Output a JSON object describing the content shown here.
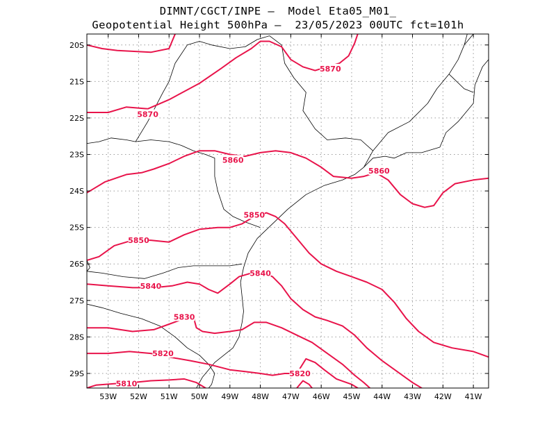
{
  "title_line1": "DIMNT/CGCT/INPE –  Model Eta05_M01_",
  "title_line2": "Geopotential Height 500hPa –  23/05/2023 00UTC fct=101h",
  "colors": {
    "contour": "#e8134a",
    "coast": "#000000",
    "grid": "#9a9a9a"
  },
  "map": {
    "lon_range": [
      -53.7,
      -40.5
    ],
    "lat_range": [
      -29.4,
      -19.7
    ],
    "lon_ticks": [
      {
        "lon": -53,
        "label": "53W"
      },
      {
        "lon": -52,
        "label": "52W"
      },
      {
        "lon": -51,
        "label": "51W"
      },
      {
        "lon": -50,
        "label": "50W"
      },
      {
        "lon": -49,
        "label": "49W"
      },
      {
        "lon": -48,
        "label": "48W"
      },
      {
        "lon": -47,
        "label": "47W"
      },
      {
        "lon": -46,
        "label": "46W"
      },
      {
        "lon": -45,
        "label": "45W"
      },
      {
        "lon": -44,
        "label": "44W"
      },
      {
        "lon": -43,
        "label": "43W"
      },
      {
        "lon": -42,
        "label": "42W"
      },
      {
        "lon": -41,
        "label": "41W"
      }
    ],
    "lat_ticks": [
      {
        "lat": -20,
        "label": "20S"
      },
      {
        "lat": -21,
        "label": "21S"
      },
      {
        "lat": -22,
        "label": "22S"
      },
      {
        "lat": -23,
        "label": "23S"
      },
      {
        "lat": -24,
        "label": "24S"
      },
      {
        "lat": -25,
        "label": "25S"
      },
      {
        "lat": -26,
        "label": "26S"
      },
      {
        "lat": -27,
        "label": "27S"
      },
      {
        "lat": -28,
        "label": "28S"
      },
      {
        "lat": -29,
        "label": "29S"
      }
    ]
  },
  "contours": [
    {
      "value": "5870",
      "points": [
        [
          -53.7,
          -20.0
        ],
        [
          -53.2,
          -20.1
        ],
        [
          -52.7,
          -20.15
        ],
        [
          -51.6,
          -20.2
        ],
        [
          -51.0,
          -20.1
        ],
        [
          -50.8,
          -19.7
        ]
      ]
    },
    {
      "value": "5870",
      "points": [
        [
          -53.7,
          -21.85
        ],
        [
          -53.0,
          -21.85
        ],
        [
          -52.4,
          -21.7
        ],
        [
          -51.7,
          -21.75
        ],
        [
          -51.0,
          -21.5
        ],
        [
          -50.0,
          -21.05
        ],
        [
          -49.3,
          -20.65
        ],
        [
          -48.8,
          -20.35
        ],
        [
          -48.3,
          -20.1
        ],
        [
          -48.0,
          -19.9
        ],
        [
          -47.7,
          -19.9
        ],
        [
          -47.3,
          -20.05
        ],
        [
          -47.0,
          -20.4
        ],
        [
          -46.6,
          -20.6
        ],
        [
          -46.2,
          -20.7
        ],
        [
          -45.8,
          -20.6
        ],
        [
          -45.4,
          -20.5
        ],
        [
          -45.1,
          -20.3
        ],
        [
          -44.9,
          -19.95
        ],
        [
          -44.8,
          -19.7
        ]
      ]
    },
    {
      "value": "5860",
      "points": [
        [
          -53.7,
          -24.05
        ],
        [
          -53.1,
          -23.75
        ],
        [
          -52.4,
          -23.55
        ],
        [
          -51.9,
          -23.5
        ],
        [
          -51.5,
          -23.4
        ],
        [
          -51.0,
          -23.25
        ],
        [
          -50.5,
          -23.05
        ],
        [
          -50.0,
          -22.9
        ],
        [
          -49.5,
          -22.9
        ],
        [
          -49.0,
          -23.0
        ],
        [
          -48.5,
          -23.05
        ],
        [
          -48.0,
          -22.95
        ],
        [
          -47.5,
          -22.9
        ],
        [
          -47.0,
          -22.95
        ],
        [
          -46.5,
          -23.1
        ],
        [
          -46.0,
          -23.35
        ],
        [
          -45.6,
          -23.6
        ],
        [
          -45.0,
          -23.65
        ],
        [
          -44.6,
          -23.6
        ],
        [
          -44.2,
          -23.5
        ],
        [
          -43.8,
          -23.7
        ],
        [
          -43.4,
          -24.1
        ],
        [
          -43.0,
          -24.35
        ],
        [
          -42.6,
          -24.45
        ],
        [
          -42.3,
          -24.4
        ],
        [
          -42.0,
          -24.05
        ],
        [
          -41.6,
          -23.8
        ],
        [
          -41.0,
          -23.7
        ],
        [
          -40.5,
          -23.65
        ]
      ]
    },
    {
      "value": "5850",
      "points": [
        [
          -53.7,
          -25.9
        ],
        [
          -53.3,
          -25.8
        ],
        [
          -52.8,
          -25.5
        ],
        [
          -52.2,
          -25.35
        ],
        [
          -51.6,
          -25.35
        ],
        [
          -51.0,
          -25.4
        ],
        [
          -50.5,
          -25.2
        ],
        [
          -50.0,
          -25.05
        ],
        [
          -49.4,
          -25.0
        ],
        [
          -49.0,
          -25.0
        ],
        [
          -48.6,
          -24.9
        ],
        [
          -48.2,
          -24.7
        ],
        [
          -47.8,
          -24.6
        ],
        [
          -47.5,
          -24.7
        ],
        [
          -47.2,
          -24.9
        ],
        [
          -46.8,
          -25.3
        ],
        [
          -46.4,
          -25.7
        ],
        [
          -46.0,
          -26.0
        ],
        [
          -45.5,
          -26.2
        ],
        [
          -45.0,
          -26.35
        ],
        [
          -44.5,
          -26.5
        ],
        [
          -44.0,
          -26.7
        ],
        [
          -43.6,
          -27.05
        ],
        [
          -43.2,
          -27.5
        ],
        [
          -42.8,
          -27.85
        ],
        [
          -42.3,
          -28.15
        ],
        [
          -41.7,
          -28.3
        ],
        [
          -41.0,
          -28.4
        ],
        [
          -40.5,
          -28.55
        ]
      ]
    },
    {
      "value": "5840",
      "points": [
        [
          -53.7,
          -26.55
        ],
        [
          -53.0,
          -26.6
        ],
        [
          -52.2,
          -26.65
        ],
        [
          -51.5,
          -26.65
        ],
        [
          -50.9,
          -26.6
        ],
        [
          -50.4,
          -26.5
        ],
        [
          -50.0,
          -26.55
        ],
        [
          -49.7,
          -26.7
        ],
        [
          -49.4,
          -26.8
        ],
        [
          -49.0,
          -26.55
        ],
        [
          -48.7,
          -26.35
        ],
        [
          -48.3,
          -26.25
        ],
        [
          -47.9,
          -26.25
        ],
        [
          -47.6,
          -26.35
        ],
        [
          -47.3,
          -26.6
        ],
        [
          -47.0,
          -26.95
        ],
        [
          -46.6,
          -27.25
        ],
        [
          -46.2,
          -27.45
        ],
        [
          -45.8,
          -27.55
        ],
        [
          -45.3,
          -27.7
        ],
        [
          -44.9,
          -27.95
        ],
        [
          -44.5,
          -28.3
        ],
        [
          -44.0,
          -28.65
        ],
        [
          -43.5,
          -28.95
        ],
        [
          -43.0,
          -29.25
        ],
        [
          -42.7,
          -29.4
        ]
      ]
    },
    {
      "value": "5830",
      "points": [
        [
          -53.7,
          -27.75
        ],
        [
          -53.0,
          -27.75
        ],
        [
          -52.2,
          -27.85
        ],
        [
          -51.5,
          -27.8
        ],
        [
          -51.0,
          -27.65
        ],
        [
          -50.5,
          -27.5
        ],
        [
          -50.2,
          -27.45
        ],
        [
          -50.1,
          -27.75
        ],
        [
          -49.9,
          -27.85
        ],
        [
          -49.5,
          -27.9
        ],
        [
          -49.0,
          -27.85
        ],
        [
          -48.6,
          -27.8
        ],
        [
          -48.2,
          -27.6
        ],
        [
          -47.8,
          -27.6
        ],
        [
          -47.3,
          -27.75
        ],
        [
          -46.8,
          -27.95
        ],
        [
          -46.3,
          -28.15
        ],
        [
          -45.8,
          -28.45
        ],
        [
          -45.3,
          -28.75
        ],
        [
          -44.9,
          -29.05
        ],
        [
          -44.6,
          -29.25
        ],
        [
          -44.4,
          -29.4
        ]
      ]
    },
    {
      "value": "5820",
      "points": [
        [
          -53.7,
          -28.45
        ],
        [
          -53.0,
          -28.45
        ],
        [
          -52.3,
          -28.4
        ],
        [
          -51.6,
          -28.45
        ],
        [
          -51.0,
          -28.55
        ],
        [
          -50.3,
          -28.65
        ],
        [
          -49.7,
          -28.75
        ],
        [
          -49.0,
          -28.9
        ],
        [
          -48.5,
          -28.95
        ],
        [
          -48.0,
          -29.0
        ],
        [
          -47.6,
          -29.05
        ],
        [
          -47.2,
          -29.0
        ],
        [
          -46.8,
          -29.0
        ],
        [
          -46.5,
          -28.6
        ],
        [
          -46.2,
          -28.7
        ],
        [
          -45.9,
          -28.9
        ],
        [
          -45.5,
          -29.15
        ],
        [
          -45.0,
          -29.3
        ],
        [
          -44.8,
          -29.4
        ]
      ]
    },
    {
      "value": "5810",
      "points": [
        [
          -53.7,
          -29.4
        ],
        [
          -53.4,
          -29.32
        ],
        [
          -52.8,
          -29.28
        ],
        [
          -52.2,
          -29.25
        ],
        [
          -51.6,
          -29.2
        ],
        [
          -51.0,
          -29.18
        ],
        [
          -50.5,
          -29.15
        ],
        [
          -50.1,
          -29.25
        ],
        [
          -49.8,
          -29.4
        ]
      ]
    },
    {
      "value": "",
      "points": [
        [
          -46.8,
          -29.4
        ],
        [
          -46.6,
          -29.2
        ],
        [
          -46.4,
          -29.3
        ],
        [
          -46.3,
          -29.4
        ]
      ]
    }
  ],
  "contour_labels": [
    {
      "text": "5870",
      "lon": -45.7,
      "lat": -20.65
    },
    {
      "text": "5870",
      "lon": -51.7,
      "lat": -21.9
    },
    {
      "text": "5860",
      "lon": -48.9,
      "lat": -23.15
    },
    {
      "text": "5860",
      "lon": -44.1,
      "lat": -23.45
    },
    {
      "text": "5850",
      "lon": -48.2,
      "lat": -24.65
    },
    {
      "text": "5850",
      "lon": -52.0,
      "lat": -25.35
    },
    {
      "text": "5840",
      "lon": -48.0,
      "lat": -26.25
    },
    {
      "text": "5840",
      "lon": -51.6,
      "lat": -26.6
    },
    {
      "text": "5830",
      "lon": -50.5,
      "lat": -27.45
    },
    {
      "text": "5820",
      "lon": -51.2,
      "lat": -28.45
    },
    {
      "text": "5820",
      "lon": -46.7,
      "lat": -29.0
    },
    {
      "text": "5810",
      "lon": -52.4,
      "lat": -29.28
    }
  ],
  "boundaries": [
    {
      "name": "coastline",
      "points": [
        [
          -50.1,
          -29.4
        ],
        [
          -49.9,
          -29.1
        ],
        [
          -49.5,
          -28.7
        ],
        [
          -48.9,
          -28.3
        ],
        [
          -48.7,
          -28.0
        ],
        [
          -48.6,
          -27.6
        ],
        [
          -48.55,
          -27.3
        ],
        [
          -48.6,
          -26.9
        ],
        [
          -48.65,
          -26.5
        ],
        [
          -48.55,
          -26.1
        ],
        [
          -48.4,
          -25.7
        ],
        [
          -48.1,
          -25.3
        ],
        [
          -47.6,
          -24.9
        ],
        [
          -47.1,
          -24.5
        ],
        [
          -46.5,
          -24.1
        ],
        [
          -45.9,
          -23.85
        ],
        [
          -45.3,
          -23.7
        ],
        [
          -44.9,
          -23.55
        ],
        [
          -44.6,
          -23.35
        ],
        [
          -44.3,
          -23.1
        ],
        [
          -43.9,
          -23.05
        ],
        [
          -43.6,
          -23.1
        ],
        [
          -43.2,
          -22.95
        ],
        [
          -42.7,
          -22.95
        ],
        [
          -42.1,
          -22.8
        ],
        [
          -41.9,
          -22.4
        ],
        [
          -41.5,
          -22.1
        ],
        [
          -41.0,
          -21.6
        ],
        [
          -40.95,
          -21.1
        ],
        [
          -40.7,
          -20.6
        ],
        [
          -40.5,
          -20.4
        ]
      ]
    },
    {
      "name": "border-ms-pr",
      "points": [
        [
          -53.7,
          -22.7
        ],
        [
          -53.3,
          -22.65
        ],
        [
          -52.9,
          -22.55
        ],
        [
          -52.4,
          -22.6
        ],
        [
          -52.1,
          -22.65
        ]
      ]
    },
    {
      "name": "border-sp-pr",
      "points": [
        [
          -52.1,
          -22.65
        ],
        [
          -51.6,
          -22.6
        ],
        [
          -51.0,
          -22.65
        ],
        [
          -50.6,
          -22.75
        ],
        [
          -50.2,
          -22.9
        ],
        [
          -49.8,
          -23.0
        ],
        [
          -49.5,
          -23.1
        ],
        [
          -49.5,
          -23.6
        ],
        [
          -49.4,
          -24.0
        ],
        [
          -49.2,
          -24.5
        ],
        [
          -48.9,
          -24.7
        ],
        [
          -48.5,
          -24.85
        ],
        [
          -48.0,
          -25.0
        ]
      ]
    },
    {
      "name": "border-ms-sp",
      "points": [
        [
          -52.1,
          -22.65
        ],
        [
          -51.7,
          -22.1
        ],
        [
          -51.2,
          -21.3
        ],
        [
          -51.0,
          -21.0
        ],
        [
          -50.8,
          -20.5
        ],
        [
          -50.4,
          -20.0
        ],
        [
          -50.0,
          -19.9
        ],
        [
          -49.6,
          -20.0
        ],
        [
          -49.0,
          -20.1
        ],
        [
          -48.5,
          -20.05
        ],
        [
          -48.1,
          -19.85
        ],
        [
          -47.7,
          -19.75
        ]
      ]
    },
    {
      "name": "border-mg-sp",
      "points": [
        [
          -47.7,
          -19.75
        ],
        [
          -47.3,
          -20.0
        ],
        [
          -47.2,
          -20.5
        ],
        [
          -46.9,
          -20.9
        ],
        [
          -46.5,
          -21.3
        ],
        [
          -46.6,
          -21.8
        ],
        [
          -46.2,
          -22.3
        ],
        [
          -45.8,
          -22.6
        ],
        [
          -45.2,
          -22.55
        ],
        [
          -44.7,
          -22.6
        ],
        [
          -44.3,
          -22.9
        ],
        [
          -44.6,
          -23.35
        ]
      ]
    },
    {
      "name": "border-mg-rj",
      "points": [
        [
          -44.3,
          -22.9
        ],
        [
          -43.8,
          -22.4
        ],
        [
          -43.1,
          -22.1
        ],
        [
          -42.5,
          -21.6
        ],
        [
          -42.2,
          -21.2
        ],
        [
          -41.8,
          -20.8
        ],
        [
          -41.5,
          -20.4
        ],
        [
          -41.3,
          -20.0
        ],
        [
          -41.2,
          -19.7
        ]
      ]
    },
    {
      "name": "border-rj-es",
      "points": [
        [
          -41.8,
          -20.8
        ],
        [
          -41.3,
          -21.2
        ],
        [
          -41.0,
          -21.3
        ]
      ]
    },
    {
      "name": "border-mg-es",
      "points": [
        [
          -41.3,
          -20.0
        ],
        [
          -41.0,
          -19.7
        ]
      ]
    },
    {
      "name": "border-pr-sc",
      "points": [
        [
          -53.7,
          -26.2
        ],
        [
          -53.2,
          -26.25
        ],
        [
          -52.5,
          -26.35
        ],
        [
          -51.8,
          -26.4
        ],
        [
          -51.2,
          -26.25
        ],
        [
          -50.7,
          -26.1
        ],
        [
          -50.2,
          -26.05
        ],
        [
          -49.6,
          -26.05
        ],
        [
          -49.0,
          -26.05
        ],
        [
          -48.6,
          -26.0
        ]
      ]
    },
    {
      "name": "border-sc-rs",
      "points": [
        [
          -53.7,
          -27.1
        ],
        [
          -53.2,
          -27.2
        ],
        [
          -52.6,
          -27.35
        ],
        [
          -51.9,
          -27.5
        ],
        [
          -51.3,
          -27.7
        ],
        [
          -50.8,
          -28.0
        ],
        [
          -50.4,
          -28.3
        ],
        [
          -50.0,
          -28.5
        ],
        [
          -49.7,
          -28.75
        ],
        [
          -49.5,
          -29.0
        ],
        [
          -49.6,
          -29.3
        ],
        [
          -49.7,
          -29.4
        ]
      ]
    },
    {
      "name": "argentina-border",
      "points": [
        [
          -53.7,
          -25.9
        ],
        [
          -53.6,
          -26.1
        ],
        [
          -53.7,
          -26.2
        ]
      ]
    }
  ]
}
